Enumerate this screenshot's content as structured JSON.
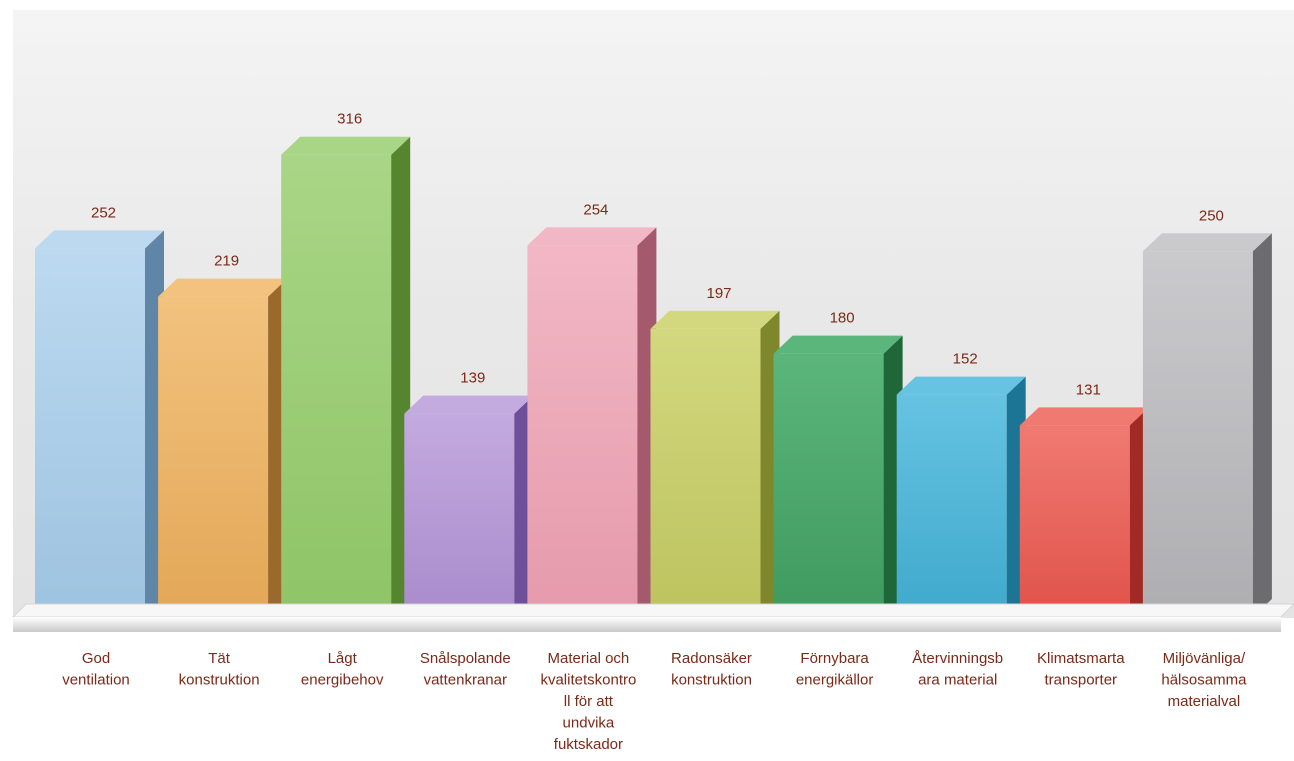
{
  "chart_data": {
    "type": "bar",
    "title": "",
    "xlabel": "",
    "ylabel": "",
    "style": "3d-column",
    "grid": false,
    "legend": "none",
    "categories": [
      [
        "God",
        "ventilation"
      ],
      [
        "Tät",
        "konstruktion"
      ],
      [
        "Lågt",
        "energibehov"
      ],
      [
        "Snålspolande",
        "vattenkranar"
      ],
      [
        "Material och",
        "kvalitetskontro",
        "ll för att",
        "undvika",
        "fuktskador"
      ],
      [
        "Radonsäker",
        "konstruktion"
      ],
      [
        "Förnybara",
        "energikällor"
      ],
      [
        "Återvinningsb",
        "ara material"
      ],
      [
        "Klimatsmarta",
        "transporter"
      ],
      [
        "Miljövänliga/",
        "hälsosamma",
        "materialval"
      ]
    ],
    "values": [
      252,
      219,
      316,
      139,
      254,
      197,
      180,
      152,
      131,
      250
    ],
    "value_labels": [
      "252",
      "219",
      "316",
      "139",
      "254",
      "197",
      "180",
      "152",
      "131",
      "250"
    ],
    "colors": [
      {
        "front": "#9dc3e0",
        "side": "#5f86a6",
        "top": "#bcd9f0"
      },
      {
        "front": "#e3a757",
        "side": "#9a6a2c",
        "top": "#f2c27e"
      },
      {
        "front": "#8fc467",
        "side": "#55852f",
        "top": "#a9d686"
      },
      {
        "front": "#a98bcc",
        "side": "#6e4f99",
        "top": "#c3aadf"
      },
      {
        "front": "#e59aab",
        "side": "#a5596c",
        "top": "#f2b7c5"
      },
      {
        "front": "#bcc35e",
        "side": "#7f872c",
        "top": "#d3d87e"
      },
      {
        "front": "#3f9a5f",
        "side": "#1f6738",
        "top": "#5bb67b"
      },
      {
        "front": "#3fa9cc",
        "side": "#1d7596",
        "top": "#66c3e2"
      },
      {
        "front": "#e0524a",
        "side": "#a22a24",
        "top": "#f07a72"
      },
      {
        "front": "#aeaeb1",
        "side": "#6c6c70",
        "top": "#cacacd"
      }
    ],
    "background_color": "#ebebeb",
    "label_color": "#7a2a18"
  }
}
